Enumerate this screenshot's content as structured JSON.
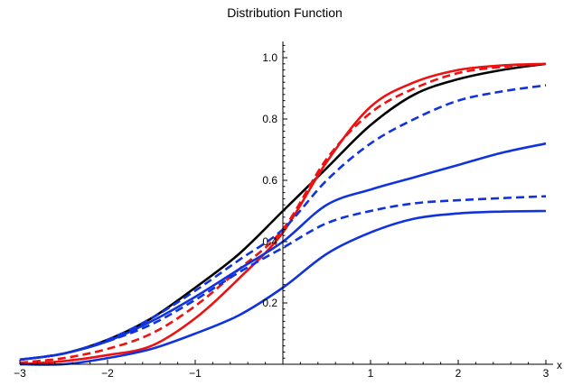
{
  "chart_data": {
    "type": "line",
    "title": "Distribution Function",
    "xlabel": "x",
    "ylabel": "",
    "xlim": [
      -3,
      3
    ],
    "ylim": [
      0,
      1.05
    ],
    "grid": false,
    "legend": "none",
    "x_ticks": [
      {
        "value": -3,
        "label": "−3"
      },
      {
        "value": -2,
        "label": "−2"
      },
      {
        "value": -1,
        "label": "−1"
      },
      {
        "value": 1,
        "label": "1"
      },
      {
        "value": 2,
        "label": "2"
      },
      {
        "value": 3,
        "label": "3"
      }
    ],
    "y_ticks": [
      {
        "value": 0.2,
        "label": "0.2"
      },
      {
        "value": 0.4,
        "label": "0.4"
      },
      {
        "value": 0.6,
        "label": "0.6"
      },
      {
        "value": 0.8,
        "label": "0.8"
      },
      {
        "value": 1.0,
        "label": "1.0"
      }
    ],
    "x": [
      -3,
      -2.5,
      -2,
      -1.5,
      -1,
      -0.5,
      0,
      0.5,
      1,
      1.5,
      2,
      2.5,
      3
    ],
    "series": [
      {
        "color": "#000000",
        "dash": "solid",
        "values": [
          0.015,
          0.035,
          0.08,
          0.15,
          0.25,
          0.36,
          0.5,
          0.64,
          0.78,
          0.88,
          0.93,
          0.96,
          0.98
        ]
      },
      {
        "color": "#ee1111",
        "dash": "solid",
        "values": [
          0.0,
          0.01,
          0.03,
          0.06,
          0.15,
          0.28,
          0.43,
          0.66,
          0.84,
          0.92,
          0.96,
          0.975,
          0.98
        ]
      },
      {
        "color": "#ee1111",
        "dash": "dash",
        "values": [
          0.005,
          0.02,
          0.05,
          0.1,
          0.19,
          0.31,
          0.44,
          0.67,
          0.82,
          0.9,
          0.95,
          0.97,
          0.98
        ]
      },
      {
        "color": "#1133dd",
        "dash": "dash",
        "values": [
          0.015,
          0.035,
          0.08,
          0.15,
          0.24,
          0.34,
          0.44,
          0.6,
          0.72,
          0.8,
          0.86,
          0.89,
          0.91
        ]
      },
      {
        "color": "#1133dd",
        "dash": "solid",
        "values": [
          0.015,
          0.035,
          0.075,
          0.14,
          0.22,
          0.31,
          0.4,
          0.52,
          0.57,
          0.61,
          0.65,
          0.69,
          0.72
        ]
      },
      {
        "color": "#1133dd",
        "dash": "dash",
        "values": [
          0.015,
          0.035,
          0.075,
          0.13,
          0.21,
          0.3,
          0.38,
          0.46,
          0.5,
          0.525,
          0.535,
          0.542,
          0.548
        ]
      },
      {
        "color": "#1133dd",
        "dash": "solid",
        "values": [
          0.0,
          0.0,
          0.02,
          0.05,
          0.1,
          0.16,
          0.25,
          0.36,
          0.43,
          0.475,
          0.492,
          0.498,
          0.5
        ]
      }
    ]
  }
}
